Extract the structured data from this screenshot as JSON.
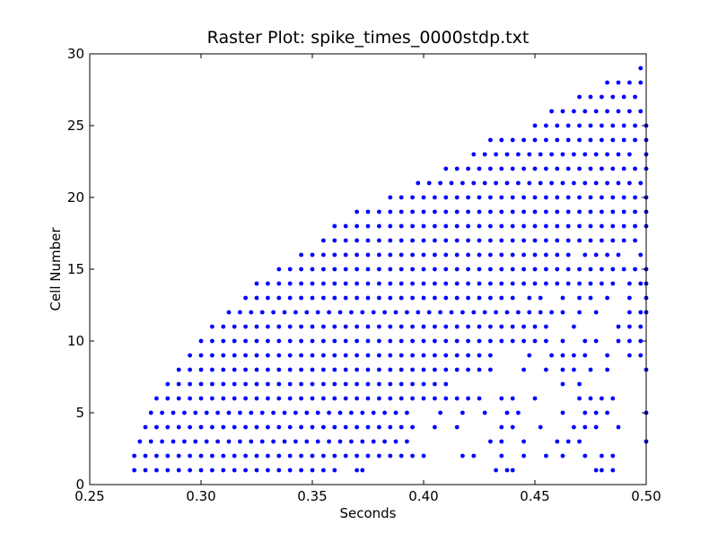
{
  "chart_data": {
    "type": "scatter",
    "title": "Raster Plot: spike_times_0000stdp.txt",
    "xlabel": "Seconds",
    "ylabel": "Cell Number",
    "xlim": [
      0.25,
      0.5
    ],
    "ylim": [
      0,
      30
    ],
    "x_ticks": [
      "0.25",
      "0.30",
      "0.35",
      "0.40",
      "0.45",
      "0.50"
    ],
    "y_ticks": [
      "0",
      "5",
      "10",
      "15",
      "20",
      "25",
      "30"
    ],
    "grid": false,
    "legend": "none",
    "marker_color": "#0000ff",
    "isi": 0.005,
    "series": [
      {
        "values": [
          {
            "cell": 1,
            "runs": [
              [
                0.27,
                0.355
              ],
              [
                0.36
              ],
              [
                0.37
              ],
              [
                0.3725
              ],
              [
                0.4325
              ],
              [
                0.4375
              ],
              [
                0.44
              ],
              [
                0.4775
              ],
              [
                0.48
              ],
              [
                0.485
              ]
            ]
          },
          {
            "cell": 2,
            "runs": [
              [
                0.27,
                0.4025
              ],
              [
                0.4175
              ],
              [
                0.4225
              ],
              [
                0.435
              ],
              [
                0.445
              ],
              [
                0.455
              ],
              [
                0.4625
              ],
              [
                0.4725
              ],
              [
                0.48
              ],
              [
                0.485
              ]
            ]
          },
          {
            "cell": 3,
            "runs": [
              [
                0.2725,
                0.395
              ],
              [
                0.43
              ],
              [
                0.435
              ],
              [
                0.445
              ],
              [
                0.46
              ],
              [
                0.465
              ],
              [
                0.47
              ],
              [
                0.5
              ]
            ]
          },
          {
            "cell": 4,
            "runs": [
              [
                0.275,
                0.395
              ],
              [
                0.405
              ],
              [
                0.415
              ],
              [
                0.435
              ],
              [
                0.44
              ],
              [
                0.4525
              ],
              [
                0.4675
              ],
              [
                0.4725
              ],
              [
                0.4775
              ],
              [
                0.4875
              ]
            ]
          },
          {
            "cell": 5,
            "runs": [
              [
                0.2775,
                0.3925
              ],
              [
                0.4075
              ],
              [
                0.4175
              ],
              [
                0.4275
              ],
              [
                0.4375
              ],
              [
                0.4425
              ],
              [
                0.4625
              ],
              [
                0.4725
              ],
              [
                0.4775
              ],
              [
                0.4825
              ],
              [
                0.5
              ]
            ]
          },
          {
            "cell": 6,
            "runs": [
              [
                0.28,
                0.425
              ],
              [
                0.435
              ],
              [
                0.44
              ],
              [
                0.45
              ],
              [
                0.47
              ],
              [
                0.475
              ],
              [
                0.48
              ],
              [
                0.485
              ]
            ]
          },
          {
            "cell": 7,
            "runs": [
              [
                0.285,
                0.41
              ],
              [
                0.4625
              ],
              [
                0.47
              ]
            ]
          },
          {
            "cell": 8,
            "runs": [
              [
                0.29,
                0.425
              ],
              [
                0.43
              ],
              [
                0.445
              ],
              [
                0.455
              ],
              [
                0.4625
              ],
              [
                0.4675
              ],
              [
                0.475
              ],
              [
                0.4825
              ],
              [
                0.5
              ]
            ]
          },
          {
            "cell": 9,
            "runs": [
              [
                0.295,
                0.4325
              ],
              [
                0.4475
              ],
              [
                0.4575
              ],
              [
                0.4625
              ],
              [
                0.4675
              ],
              [
                0.4725
              ],
              [
                0.4825
              ],
              [
                0.4925
              ],
              [
                0.4975
              ]
            ]
          },
          {
            "cell": 10,
            "runs": [
              [
                0.3,
                0.445
              ],
              [
                0.45
              ],
              [
                0.455
              ],
              [
                0.4625
              ],
              [
                0.4725
              ],
              [
                0.4775
              ],
              [
                0.4875
              ],
              [
                0.4925
              ],
              [
                0.4975
              ]
            ]
          },
          {
            "cell": 11,
            "runs": [
              [
                0.305,
                0.45
              ],
              [
                0.455
              ],
              [
                0.4675
              ],
              [
                0.4875
              ],
              [
                0.4925
              ],
              [
                0.4975
              ]
            ]
          },
          {
            "cell": 12,
            "runs": [
              [
                0.3125,
                0.465
              ],
              [
                0.47
              ],
              [
                0.4775
              ],
              [
                0.4925
              ],
              [
                0.4975
              ],
              [
                0.5
              ]
            ]
          },
          {
            "cell": 13,
            "runs": [
              [
                0.32,
                0.4425
              ],
              [
                0.4475
              ],
              [
                0.4525
              ],
              [
                0.4625
              ],
              [
                0.47
              ],
              [
                0.475
              ],
              [
                0.4825
              ],
              [
                0.4925
              ],
              [
                0.5
              ]
            ]
          },
          {
            "cell": 14,
            "runs": [
              [
                0.325,
                0.485
              ],
              [
                0.4925
              ],
              [
                0.4975
              ],
              [
                0.5
              ]
            ]
          },
          {
            "cell": 15,
            "runs": [
              [
                0.335,
                0.5
              ]
            ]
          },
          {
            "cell": 16,
            "runs": [
              [
                0.345,
                0.4675
              ],
              [
                0.4725
              ],
              [
                0.4775
              ],
              [
                0.4825
              ],
              [
                0.4875
              ],
              [
                0.4975
              ]
            ]
          },
          {
            "cell": 17,
            "runs": [
              [
                0.355,
                0.4975
              ]
            ]
          },
          {
            "cell": 18,
            "runs": [
              [
                0.36,
                0.4975
              ],
              [
                0.5
              ]
            ]
          },
          {
            "cell": 19,
            "runs": [
              [
                0.37,
                0.5
              ]
            ]
          },
          {
            "cell": 20,
            "runs": [
              [
                0.385,
                0.5
              ]
            ]
          },
          {
            "cell": 21,
            "runs": [
              [
                0.3975,
                0.5
              ]
            ]
          },
          {
            "cell": 22,
            "runs": [
              [
                0.41,
                0.5
              ]
            ]
          },
          {
            "cell": 23,
            "runs": [
              [
                0.4225,
                0.495
              ],
              [
                0.5
              ]
            ]
          },
          {
            "cell": 24,
            "runs": [
              [
                0.43,
                0.5
              ]
            ]
          },
          {
            "cell": 25,
            "runs": [
              [
                0.45,
                0.5
              ]
            ]
          },
          {
            "cell": 26,
            "runs": [
              [
                0.4575,
                0.4975
              ]
            ]
          },
          {
            "cell": 27,
            "runs": [
              [
                0.47,
                0.4975
              ]
            ]
          },
          {
            "cell": 28,
            "runs": [
              [
                0.4825,
                0.5
              ]
            ]
          },
          {
            "cell": 29,
            "runs": [
              [
                0.4975
              ]
            ]
          }
        ]
      }
    ]
  }
}
